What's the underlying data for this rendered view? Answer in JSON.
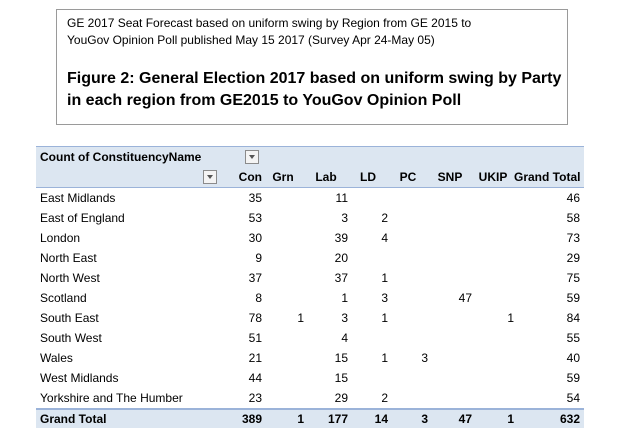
{
  "header": {
    "subtitle_line1": "GE 2017 Seat Forecast based on uniform swing by Region from GE 2015  to",
    "subtitle_line2": "YouGov Opinion Poll published May 15 2017  (Survey Apr 24-May 05)",
    "figure_title": "Figure 2: General Election 2017 based on uniform swing by Party in each region from GE2015 to YouGov Opinion Poll"
  },
  "pivot": {
    "value_field_label": "Count of ConstituencyName",
    "columns": [
      "Con",
      "Grn",
      "Lab",
      "LD",
      "PC",
      "SNP",
      "UKIP",
      "Grand Total"
    ],
    "rows": [
      {
        "region": "East Midlands",
        "values": [
          "35",
          "",
          "11",
          "",
          "",
          "",
          "",
          "46"
        ]
      },
      {
        "region": "East of England",
        "values": [
          "53",
          "",
          "3",
          "2",
          "",
          "",
          "",
          "58"
        ]
      },
      {
        "region": "London",
        "values": [
          "30",
          "",
          "39",
          "4",
          "",
          "",
          "",
          "73"
        ]
      },
      {
        "region": "North East",
        "values": [
          "9",
          "",
          "20",
          "",
          "",
          "",
          "",
          "29"
        ]
      },
      {
        "region": "North West",
        "values": [
          "37",
          "",
          "37",
          "1",
          "",
          "",
          "",
          "75"
        ]
      },
      {
        "region": "Scotland",
        "values": [
          "8",
          "",
          "1",
          "3",
          "",
          "47",
          "",
          "59"
        ]
      },
      {
        "region": "South East",
        "values": [
          "78",
          "1",
          "3",
          "1",
          "",
          "",
          "1",
          "84"
        ]
      },
      {
        "region": "South West",
        "values": [
          "51",
          "",
          "4",
          "",
          "",
          "",
          "",
          "55"
        ]
      },
      {
        "region": "Wales",
        "values": [
          "21",
          "",
          "15",
          "1",
          "3",
          "",
          "",
          "40"
        ]
      },
      {
        "region": "West Midlands",
        "values": [
          "44",
          "",
          "15",
          "",
          "",
          "",
          "",
          "59"
        ]
      },
      {
        "region": "Yorkshire and The Humber",
        "values": [
          "23",
          "",
          "29",
          "2",
          "",
          "",
          "",
          "54"
        ]
      }
    ],
    "total": {
      "label": "Grand Total",
      "values": [
        "389",
        "1",
        "177",
        "14",
        "3",
        "47",
        "1",
        "632"
      ]
    }
  }
}
